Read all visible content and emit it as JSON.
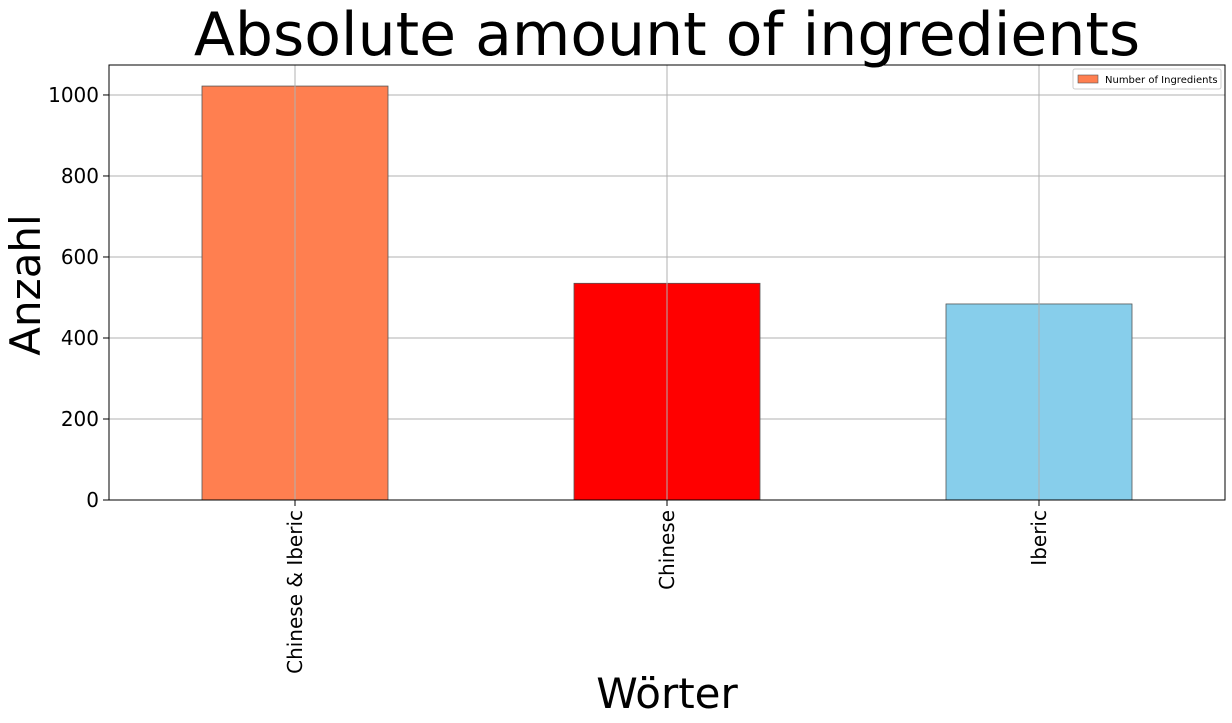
{
  "chart_data": {
    "type": "bar",
    "title": "Absolute amount of ingredients",
    "xlabel": "Wörter",
    "ylabel": "Anzahl",
    "categories": [
      "Chinese & Iberic",
      "Chinese",
      "Iberic"
    ],
    "series": [
      {
        "name": "Number of Ingredients",
        "values": [
          1022,
          535,
          484
        ],
        "colors": [
          "#FF7F50",
          "#FF0000",
          "#87CEEB"
        ]
      }
    ],
    "ylim": [
      0,
      1074
    ],
    "yticks": [
      0,
      200,
      400,
      600,
      800,
      1000
    ],
    "grid": true,
    "legend": {
      "position": "top-right",
      "entries": [
        "Number of Ingredients"
      ]
    }
  }
}
